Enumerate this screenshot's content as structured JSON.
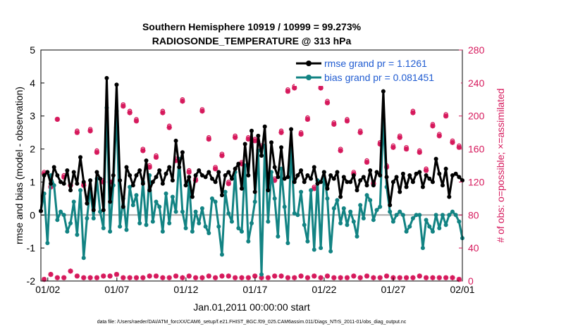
{
  "chart_data": {
    "type": "line",
    "title": "Southern Hemisphere 10919 / 10999 = 99.273%",
    "subtitle": "RADIOSONDE_TEMPERATURE @ 313 hPa",
    "xlabel": "Jan.01,2011 00:00:00 start",
    "ylabel": "rmse and bias (model - observation)",
    "y2label": "# of obs: o=possible; ×=assimilated",
    "footer": "data file: /Users/raeder/DAI/ATM_forcXX/CAM6_setup/f.e21.FHIST_BGC.f09_025.CAM6assim.011/Diags_NTrS_2011-01/obs_diag_output.nc",
    "xlim": [
      0.5,
      31.0
    ],
    "ylim": [
      -2,
      5
    ],
    "y2lim": [
      0,
      280
    ],
    "x_tick_values": [
      1,
      6,
      11,
      16,
      21,
      26,
      31
    ],
    "x_tick_labels": [
      "01/02",
      "01/07",
      "01/12",
      "01/17",
      "01/22",
      "01/27",
      "02/01"
    ],
    "y_ticks": [
      -2,
      -1,
      0,
      1,
      2,
      3,
      4,
      5
    ],
    "y2_ticks": [
      0,
      40,
      80,
      120,
      160,
      200,
      240,
      280
    ],
    "colors": {
      "rmse": "#000000",
      "bias": "#128383",
      "obs": "#d6195c",
      "legend_text": "#1f5bd1",
      "zero_line": "#aaaaaa"
    },
    "legend": {
      "placement": "top-right",
      "entries": [
        "rmse grand pr = 1.1261",
        "bias grand pr = 0.081451"
      ]
    },
    "series": [
      {
        "name": "rmse grand pr = 1.1261",
        "y": [
          0.12,
          1.2,
          1.3,
          0.95,
          1.45,
          1.2,
          1.0,
          0.95,
          1.35,
          0.75,
          1.3,
          0.95,
          1.75,
          1.0,
          0.35,
          1.05,
          0.15,
          1.3,
          1.1,
          0.15,
          4.15,
          0.4,
          1.2,
          3.95,
          1.05,
          0.25,
          1.45,
          1.2,
          0.9,
          1.2,
          1.35,
          0.95,
          1.65,
          0.75,
          1.0,
          1.15,
          1.35,
          0.95,
          1.25,
          1.45,
          1.05,
          2.25,
          1.45,
          1.9,
          0.9,
          1.15,
          0.55,
          1.2,
          1.35,
          1.2,
          1.15,
          1.3,
          1.1,
          1.0,
          1.3,
          0.6,
          1.2,
          1.3,
          1.1,
          1.4,
          1.55,
          0.8,
          2.15,
          1.2,
          2.55,
          0.7,
          2.4,
          1.8,
          2.68,
          0.75,
          2.2,
          1.45,
          1.15,
          2.05,
          1.1,
          1.15,
          2.6,
          1.0,
          1.2,
          1.35,
          1.0,
          1.2,
          1.1,
          1.45,
          0.95,
          1.0,
          1.3,
          0.8,
          1.2,
          1.1,
          1.3,
          0.55,
          1.15,
          1.0,
          1.0,
          1.2,
          0.75,
          1.05,
          1.15,
          0.9,
          1.35,
          0.9,
          1.3,
          1.2,
          3.75,
          1.15,
          0.3,
          1.0,
          1.15,
          0.7,
          1.25,
          0.85,
          1.2,
          1.0,
          1.25,
          1.3,
          0.85,
          1.2,
          1.1,
          1.0,
          1.7,
          1.25,
          0.9,
          1.4,
          0.55,
          1.2,
          1.25,
          1.15,
          1.05
        ]
      },
      {
        "name": "bias grand pr = 0.081451",
        "y": [
          0.12,
          0.65,
          -0.85,
          1.2,
          0.9,
          -0.15,
          0.1,
          0.0,
          -0.5,
          -0.25,
          0.4,
          -0.6,
          0.75,
          -1.3,
          -0.1,
          0.8,
          -0.1,
          1.1,
          0.1,
          -0.4,
          3.25,
          -0.5,
          0.9,
          3.15,
          -0.35,
          0.5,
          -0.45,
          0.85,
          0.3,
          0.6,
          -0.25,
          1.0,
          -0.3,
          1.2,
          -0.2,
          0.4,
          0.25,
          -0.5,
          0.65,
          -0.25,
          0.55,
          0.1,
          1.7,
          0.1,
          -0.4,
          1.0,
          -0.5,
          0.1,
          -0.25,
          0.2,
          -0.35,
          -0.55,
          0.5,
          0.4,
          -0.35,
          -1.2,
          0.7,
          0.05,
          -0.2,
          1.3,
          -0.4,
          -0.5,
          1.5,
          -0.8,
          -0.25,
          0.4,
          1.95,
          -1.8,
          2.1,
          -0.2,
          1.3,
          0.5,
          -0.65,
          1.4,
          0.25,
          -0.85,
          2.05,
          0.05,
          0.0,
          0.7,
          -0.3,
          -0.8,
          0.75,
          -1.05,
          1.05,
          -1.0,
          1.3,
          0.5,
          -1.1,
          0.2,
          0.45,
          -0.25,
          0.2,
          -0.3,
          0.1,
          -0.2,
          -0.65,
          0.3,
          -0.1,
          0.6,
          0.45,
          -0.15,
          0.15,
          0.25,
          2.9,
          0.85,
          0.1,
          -0.2,
          0.0,
          0.1,
          0.0,
          -0.5,
          -0.35,
          -0.1,
          0.0,
          0.0,
          -1.0,
          -0.15,
          -0.35,
          -0.5,
          0.0,
          -0.4,
          0.0,
          -0.3,
          0.0,
          0.1,
          0.0,
          -0.2,
          -0.7
        ]
      },
      {
        "name": "obs possible",
        "y": [
          132,
          114,
          196,
          128,
          116,
          182,
          118,
          184,
          158,
          122,
          120,
          188,
          214,
          206,
          196,
          160,
          140,
          152,
          206,
          188,
          148,
          220,
          134,
          124,
          208,
          174,
          138,
          154,
          120,
          176,
          144,
          174,
          172,
          164,
          128,
          124,
          182,
          232,
          236,
          180,
          198,
          114,
          236,
          218,
          192,
          160,
          196,
          132,
          182,
          146,
          120,
          168,
          140,
          164,
          176,
          162,
          206,
          158,
          136,
          190,
          178,
          202,
          170,
          164
        ]
      },
      {
        "name": "obs assimilated",
        "y": [
          130,
          114,
          196,
          126,
          116,
          180,
          116,
          182,
          156,
          120,
          120,
          186,
          212,
          204,
          194,
          158,
          138,
          150,
          204,
          186,
          146,
          218,
          132,
          122,
          206,
          172,
          136,
          152,
          118,
          174,
          142,
          172,
          170,
          162,
          126,
          122,
          180,
          230,
          234,
          178,
          196,
          112,
          234,
          216,
          190,
          158,
          194,
          130,
          180,
          144,
          118,
          166,
          138,
          162,
          174,
          160,
          204,
          156,
          134,
          188,
          176,
          200,
          168,
          162
        ]
      },
      {
        "name": "obs low assimilated",
        "y": [
          2,
          8,
          4,
          4,
          12,
          6,
          4,
          4,
          4,
          6,
          6,
          8,
          4,
          4,
          4,
          4,
          6,
          6,
          4,
          4,
          6,
          4,
          6,
          4,
          4,
          6,
          4,
          6,
          6,
          4,
          4,
          4,
          6,
          4,
          4,
          6,
          6,
          4,
          4,
          6,
          4,
          6,
          4,
          6,
          4,
          4,
          4,
          6,
          4,
          6,
          4,
          4,
          6,
          4,
          4,
          4,
          4,
          6,
          4,
          4,
          4,
          4,
          4,
          2
        ]
      }
    ]
  }
}
